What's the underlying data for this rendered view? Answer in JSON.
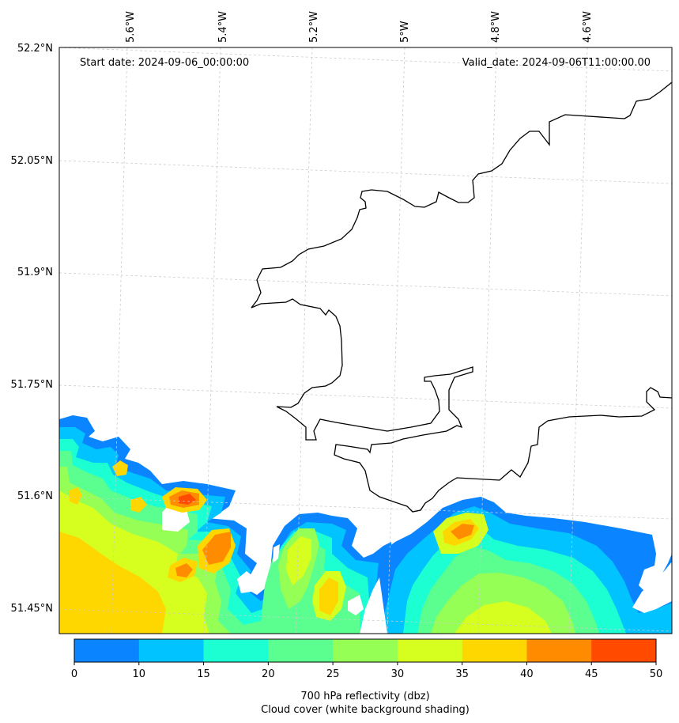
{
  "map": {
    "start_date": "Start date: 2024-09-06_00:00:00",
    "valid_date": "Valid_date: 2024-09-06T11:00:00.00",
    "lon_labels": [
      "5.6°W",
      "5.4°W",
      "5.2°W",
      "5°W",
      "4.8°W",
      "4.6°W"
    ],
    "lat_labels": [
      "52.2°N",
      "52.05°N",
      "51.9°N",
      "51.75°N",
      "51.6°N",
      "51.45°N"
    ],
    "gridlines": "dashed",
    "coastline_color": "#000000"
  },
  "colorbar": {
    "ticks": [
      "0",
      "10",
      "15",
      "20",
      "25",
      "30",
      "35",
      "40",
      "45",
      "50"
    ],
    "levels": [
      0,
      10,
      15,
      20,
      25,
      30,
      35,
      40,
      45,
      50
    ],
    "colors": [
      "#0a84ff",
      "#00c3ff",
      "#1cffd2",
      "#5aff8f",
      "#95ff55",
      "#d6ff20",
      "#ffd700",
      "#ff8c00",
      "#ff4a00"
    ],
    "label_line1": "700 hPa reflectivity (dbz)",
    "label_line2": "Cloud cover (white background shading)"
  }
}
